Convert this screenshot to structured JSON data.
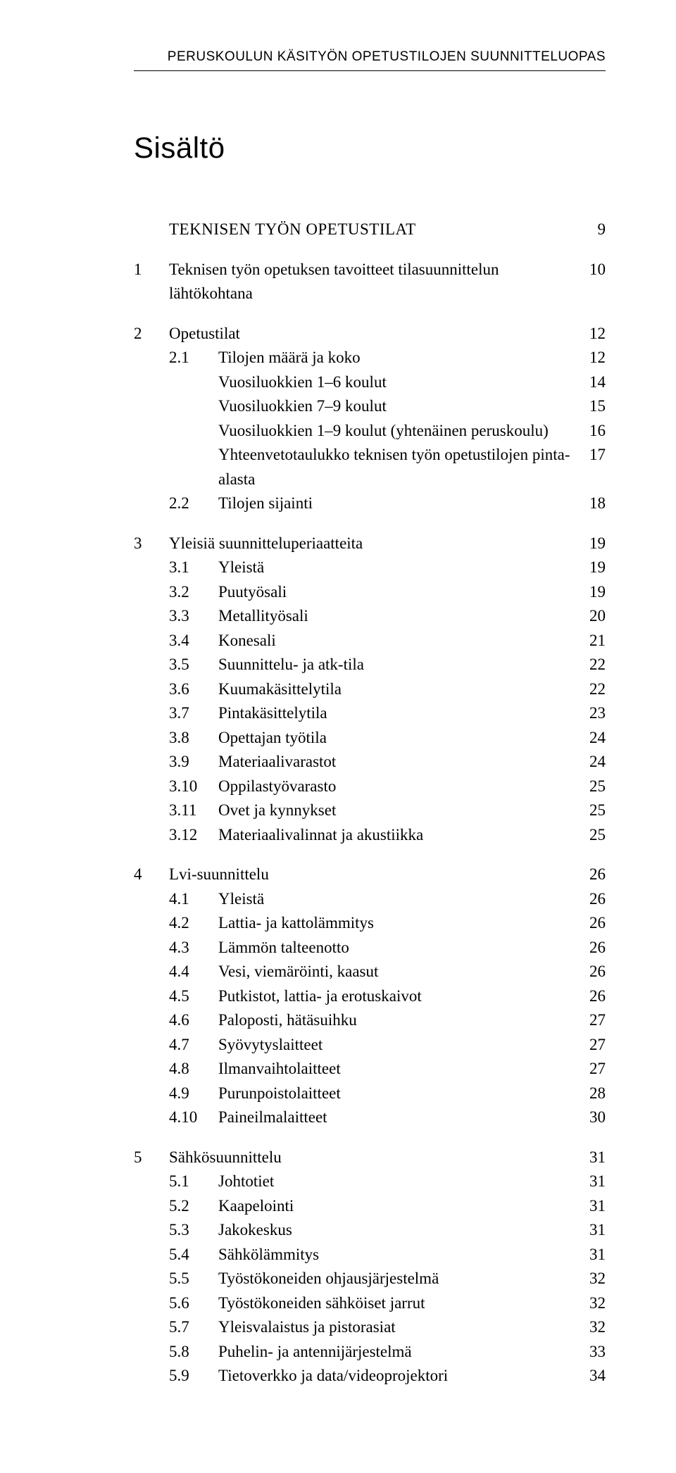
{
  "header": "PERUSKOULUN KÄSITYÖN OPETUSTILOJEN SUUNNITTELUOPAS",
  "title": "Sisältö",
  "sections": [
    {
      "num": "",
      "label": "TEKNISEN TYÖN OPETUSTILAT",
      "page": "9",
      "uppercase": true,
      "items": []
    },
    {
      "num": "1",
      "label": "Teknisen työn opetuksen tavoitteet tilasuunnittelun lähtökohtana",
      "page": "10",
      "items": []
    },
    {
      "num": "2",
      "label": "Opetustilat",
      "page": "12",
      "items": [
        {
          "num": "2.1",
          "label": "Tilojen määrä ja koko",
          "page": "12"
        },
        {
          "num": "",
          "label": "Vuosiluokkien 1–6 koulut",
          "page": "14",
          "indent2": true
        },
        {
          "num": "",
          "label": "Vuosiluokkien 7–9 koulut",
          "page": "15",
          "indent2": true
        },
        {
          "num": "",
          "label": "Vuosiluokkien 1–9 koulut (yhtenäinen peruskoulu)",
          "page": "16",
          "indent2": true
        },
        {
          "num": "",
          "label": "Yhteenvetotaulukko teknisen työn opetustilojen pinta-alasta",
          "page": "17",
          "indent2": true
        },
        {
          "num": "2.2",
          "label": "Tilojen sijainti",
          "page": "18"
        }
      ]
    },
    {
      "num": "3",
      "label": "Yleisiä suunnitteluperiaatteita",
      "page": "19",
      "items": [
        {
          "num": "3.1",
          "label": "Yleistä",
          "page": "19"
        },
        {
          "num": "3.2",
          "label": "Puutyösali",
          "page": "19"
        },
        {
          "num": "3.3",
          "label": "Metallityösali",
          "page": "20"
        },
        {
          "num": "3.4",
          "label": "Konesali",
          "page": "21"
        },
        {
          "num": "3.5",
          "label": "Suunnittelu- ja atk-tila",
          "page": "22"
        },
        {
          "num": "3.6",
          "label": "Kuumakäsittelytila",
          "page": "22"
        },
        {
          "num": "3.7",
          "label": "Pintakäsittelytila",
          "page": "23"
        },
        {
          "num": "3.8",
          "label": "Opettajan työtila",
          "page": "24"
        },
        {
          "num": "3.9",
          "label": "Materiaalivarastot",
          "page": "24"
        },
        {
          "num": "3.10",
          "label": "Oppilastyövarasto",
          "page": "25"
        },
        {
          "num": "3.11",
          "label": "Ovet ja kynnykset",
          "page": "25"
        },
        {
          "num": "3.12",
          "label": "Materiaalivalinnat ja akustiikka",
          "page": "25"
        }
      ]
    },
    {
      "num": "4",
      "label": "Lvi-suunnittelu",
      "page": "26",
      "items": [
        {
          "num": "4.1",
          "label": "Yleistä",
          "page": "26"
        },
        {
          "num": "4.2",
          "label": "Lattia- ja kattolämmitys",
          "page": "26"
        },
        {
          "num": "4.3",
          "label": "Lämmön talteenotto",
          "page": "26"
        },
        {
          "num": "4.4",
          "label": "Vesi, viemäröinti, kaasut",
          "page": "26"
        },
        {
          "num": "4.5",
          "label": "Putkistot, lattia- ja erotuskaivot",
          "page": "26"
        },
        {
          "num": "4.6",
          "label": "Paloposti, hätäsuihku",
          "page": "27"
        },
        {
          "num": "4.7",
          "label": "Syövytyslaitteet",
          "page": "27"
        },
        {
          "num": "4.8",
          "label": "Ilmanvaihtolaitteet",
          "page": "27"
        },
        {
          "num": "4.9",
          "label": "Purunpoistolaitteet",
          "page": "28"
        },
        {
          "num": "4.10",
          "label": "Paineilmalaitteet",
          "page": "30"
        }
      ]
    },
    {
      "num": "5",
      "label": "Sähkösuunnittelu",
      "page": "31",
      "items": [
        {
          "num": "5.1",
          "label": "Johtotiet",
          "page": "31"
        },
        {
          "num": "5.2",
          "label": "Kaapelointi",
          "page": "31"
        },
        {
          "num": "5.3",
          "label": "Jakokeskus",
          "page": "31"
        },
        {
          "num": "5.4",
          "label": "Sähkölämmitys",
          "page": "31"
        },
        {
          "num": "5.5",
          "label": "Työstökoneiden ohjausjärjestelmä",
          "page": "32"
        },
        {
          "num": "5.6",
          "label": "Työstökoneiden sähköiset jarrut",
          "page": "32"
        },
        {
          "num": "5.7",
          "label": "Yleisvalaistus ja pistorasiat",
          "page": "32"
        },
        {
          "num": "5.8",
          "label": "Puhelin- ja antennijärjestelmä",
          "page": "33"
        },
        {
          "num": "5.9",
          "label": "Tietoverkko ja data/videoprojektori",
          "page": "34"
        }
      ]
    }
  ],
  "colors": {
    "text": "#000000",
    "background": "#ffffff",
    "rule": "#000000"
  },
  "fonts": {
    "header_family": "Arial",
    "body_family": "Georgia",
    "header_size_pt": 14,
    "title_size_pt": 32,
    "body_size_pt": 17
  }
}
